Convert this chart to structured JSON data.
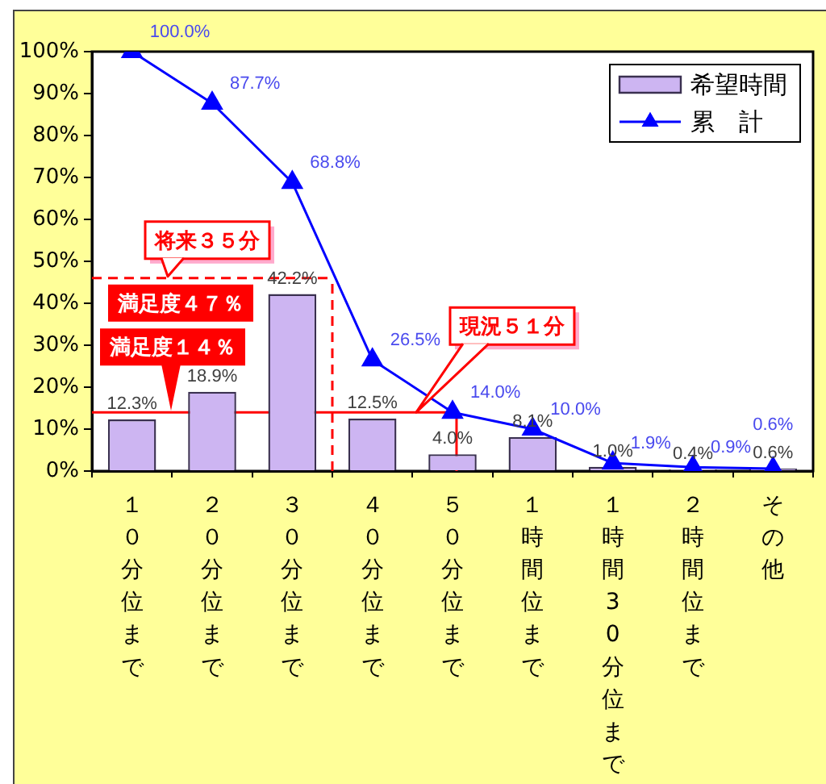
{
  "chart_data": {
    "type": "bar",
    "categories": [
      "１０分位まで",
      "２０分位まで",
      "３０分位まで",
      "４０分位まで",
      "５０分位まで",
      "１時間位まで",
      "１時間30分位まで",
      "２時間位まで",
      "その他"
    ],
    "series": [
      {
        "name": "希望時間",
        "color": "#cdb5f2",
        "values": [
          12.3,
          18.9,
          42.2,
          12.5,
          4.0,
          8.1,
          1.0,
          0.4,
          0.6
        ],
        "value_labels": [
          "12.3%",
          "18.9%",
          "42.2%",
          "12.5%",
          "4.0%",
          "8.1%",
          "1.0%",
          "0.4%",
          "0.6%"
        ]
      },
      {
        "name": "累　計",
        "type": "line",
        "color": "#0000ff",
        "values": [
          100.0,
          87.7,
          68.8,
          26.5,
          14.0,
          10.0,
          1.9,
          0.9,
          0.6
        ],
        "value_labels": [
          "100.0%",
          "87.7%",
          "68.8%",
          "26.5%",
          "14.0%",
          "10.0%",
          "1.9%",
          "0.9%",
          "0.6%"
        ]
      }
    ],
    "ylim": [
      0,
      100
    ],
    "yticks": [
      {
        "value": 0,
        "label": "0%"
      },
      {
        "value": 10,
        "label": "10%"
      },
      {
        "value": 20,
        "label": "20%"
      },
      {
        "value": 30,
        "label": "30%"
      },
      {
        "value": 40,
        "label": "40%"
      },
      {
        "value": 50,
        "label": "50%"
      },
      {
        "value": 60,
        "label": "60%"
      },
      {
        "value": 70,
        "label": "70%"
      },
      {
        "value": 80,
        "label": "80%"
      },
      {
        "value": 90,
        "label": "90%"
      },
      {
        "value": 100,
        "label": "100%"
      }
    ],
    "legend": "top right",
    "marker": "triangle",
    "ref_lines": [
      {
        "axis": "y",
        "value": 46,
        "label": "満足度４７％",
        "color": "#ff0000",
        "line_style": "dashed"
      },
      {
        "axis": "y",
        "value": 14,
        "label": "満足度１４％",
        "color": "#ff0000",
        "line_style": "solid"
      }
    ],
    "annotations": [
      "将来３５分",
      "現況５１分"
    ]
  }
}
